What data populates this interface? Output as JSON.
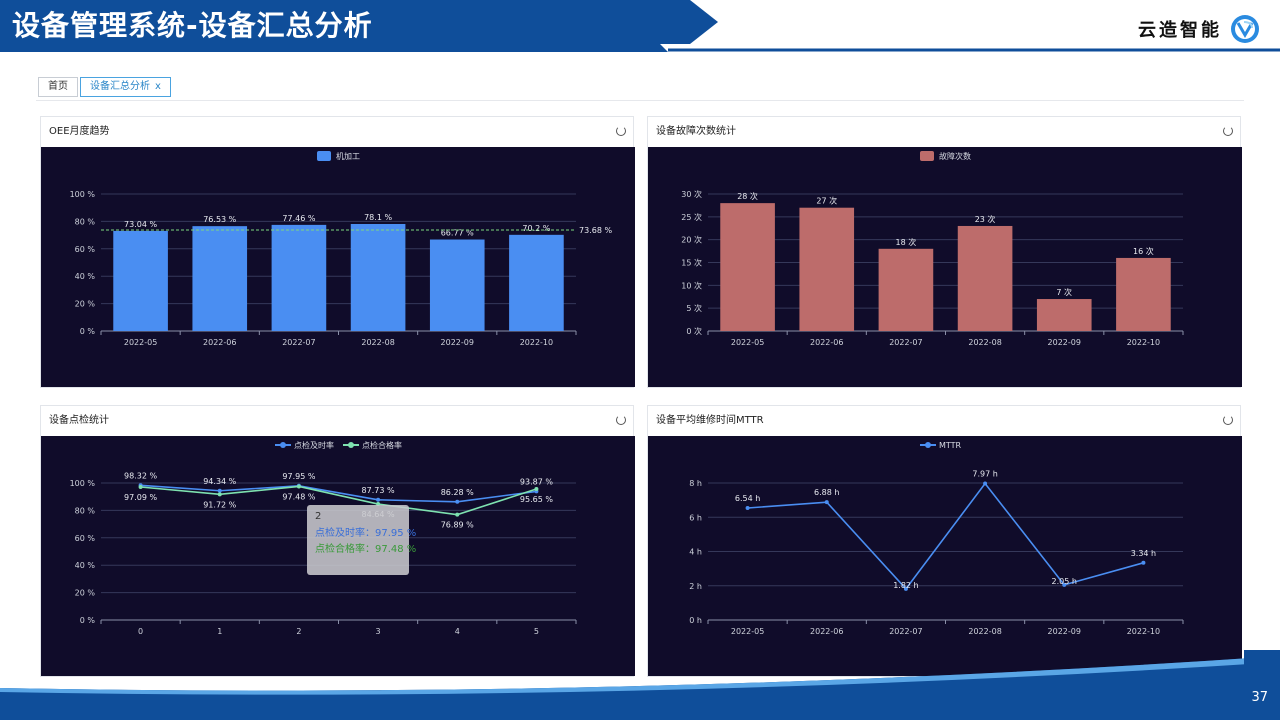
{
  "header": {
    "title": "设备管理系统-设备汇总分析",
    "brand": "云造智能",
    "brand_icon": "cloud-logo-icon"
  },
  "tabs": [
    {
      "label": "首页"
    },
    {
      "label": "设备汇总分析",
      "close": "x"
    }
  ],
  "colors": {
    "banner": "#0f4e9a",
    "plot_bg": "#100c2a",
    "oee": "#4a8ef2",
    "fault": "#bd6c6b",
    "spot_timely": "#4a8ef2",
    "spot_pass": "#7ee2b0",
    "mttr": "#4a8ef2"
  },
  "panels": {
    "oee": {
      "title": "OEE月度趋势"
    },
    "fault": {
      "title": "设备故障次数统计"
    },
    "spot": {
      "title": "设备点检统计"
    },
    "mttr": {
      "title": "设备平均维修时间MTTR"
    }
  },
  "tooltip": {
    "title": "2",
    "row1": "点检及时率：97.95 %",
    "row2": "点检合格率：97.48 %"
  },
  "page_number": "37",
  "chart_data": [
    {
      "id": "oee",
      "type": "bar",
      "categories": [
        "2022-05",
        "2022-06",
        "2022-07",
        "2022-08",
        "2022-09",
        "2022-10"
      ],
      "series": [
        {
          "name": "机加工",
          "values": [
            73.04,
            76.53,
            77.46,
            78.1,
            66.77,
            70.2
          ]
        }
      ],
      "value_labels": [
        "73.04 %",
        "76.53 %",
        "77.46 %",
        "78.1 %",
        "66.77 %",
        "70.2 %"
      ],
      "average": 73.68,
      "average_label": "73.68 %",
      "yticks": [
        "0 %",
        "20 %",
        "40 %",
        "60 %",
        "80 %",
        "100 %"
      ],
      "ylim": [
        0,
        100
      ],
      "grid": true,
      "legend": "top"
    },
    {
      "id": "fault",
      "type": "bar",
      "categories": [
        "2022-05",
        "2022-06",
        "2022-07",
        "2022-08",
        "2022-09",
        "2022-10"
      ],
      "series": [
        {
          "name": "故障次数",
          "values": [
            28,
            27,
            18,
            23,
            7,
            16
          ]
        }
      ],
      "value_labels": [
        "28 次",
        "27 次",
        "18 次",
        "23 次",
        "7 次",
        "16 次"
      ],
      "yticks": [
        "0 次",
        "5 次",
        "10 次",
        "15 次",
        "20 次",
        "25 次",
        "30 次"
      ],
      "ylim": [
        0,
        30
      ],
      "grid": true,
      "legend": "top"
    },
    {
      "id": "spot",
      "type": "line",
      "categories": [
        "0",
        "1",
        "2",
        "3",
        "4",
        "5"
      ],
      "series": [
        {
          "name": "点检及时率",
          "values": [
            98.32,
            94.34,
            97.95,
            87.73,
            86.28,
            93.87
          ],
          "labels": [
            "98.32 %",
            "94.34 %",
            "97.95 %",
            "87.73 %",
            "86.28 %",
            "93.87 %"
          ]
        },
        {
          "name": "点检合格率",
          "values": [
            97.09,
            91.72,
            97.48,
            84.64,
            76.89,
            95.65
          ],
          "labels": [
            "97.09 %",
            "91.72 %",
            "97.48 %",
            "84.64 %",
            "76.89 %",
            "95.65 %"
          ]
        }
      ],
      "yticks": [
        "0 %",
        "20 %",
        "40 %",
        "60 %",
        "80 %",
        "100 %"
      ],
      "ylim": [
        0,
        100
      ],
      "grid": true,
      "legend": "top"
    },
    {
      "id": "mttr",
      "type": "line",
      "categories": [
        "2022-05",
        "2022-06",
        "2022-07",
        "2022-08",
        "2022-09",
        "2022-10"
      ],
      "series": [
        {
          "name": "MTTR",
          "values": [
            6.54,
            6.88,
            1.82,
            7.97,
            2.05,
            3.34
          ],
          "labels": [
            "6.54 h",
            "6.88 h",
            "1.82 h",
            "7.97 h",
            "2.05 h",
            "3.34 h"
          ]
        }
      ],
      "yticks": [
        "0 h",
        "2 h",
        "4 h",
        "6 h",
        "8 h"
      ],
      "ylim": [
        0,
        8
      ],
      "grid": true,
      "legend": "top"
    }
  ]
}
